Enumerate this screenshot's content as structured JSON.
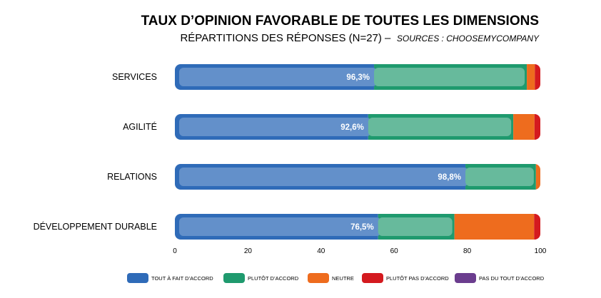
{
  "chart_data": {
    "type": "bar",
    "orientation": "horizontal",
    "stacked": true,
    "title": "TAUX D’OPINION FAVORABLE DE TOUTES LES DIMENSIONS",
    "subtitle": "RÉPARTITIONS DES RÉPONSES (N=27) –",
    "source": "SOURCES : CHOOSEMYCOMPANY",
    "categories": [
      "SERVICES",
      "AGILITÉ",
      "RELATIONS",
      "DÉVELOPPEMENT DURABLE"
    ],
    "favorable_labels": [
      "96,3%",
      "92,6%",
      "98,8%",
      "76,5%"
    ],
    "series": [
      {
        "name": "TOUT À FAIT D’ACCORD",
        "color": "#2f6bb8",
        "values": [
          54.5,
          52.9,
          79.5,
          55.6
        ]
      },
      {
        "name": "PLUTÔT D’ACCORD",
        "color": "#1f9a6e",
        "values": [
          41.8,
          39.7,
          19.3,
          20.9
        ]
      },
      {
        "name": "NEUTRE",
        "color": "#ee6c1e",
        "values": [
          2.2,
          5.8,
          1.2,
          21.8
        ]
      },
      {
        "name": "PLUTÔT PAS D’ACCORD",
        "color": "#d41a1f",
        "values": [
          1.5,
          1.6,
          0,
          1.7
        ]
      },
      {
        "name": "PAS DU TOUT D’ACCORD",
        "color": "#6b3d8e",
        "values": [
          0,
          0,
          0,
          0
        ]
      }
    ],
    "xlim": [
      0,
      100
    ],
    "xticks": [
      "0",
      "20",
      "40",
      "60",
      "80",
      "100"
    ],
    "grid": false,
    "legend_position": "bottom"
  }
}
